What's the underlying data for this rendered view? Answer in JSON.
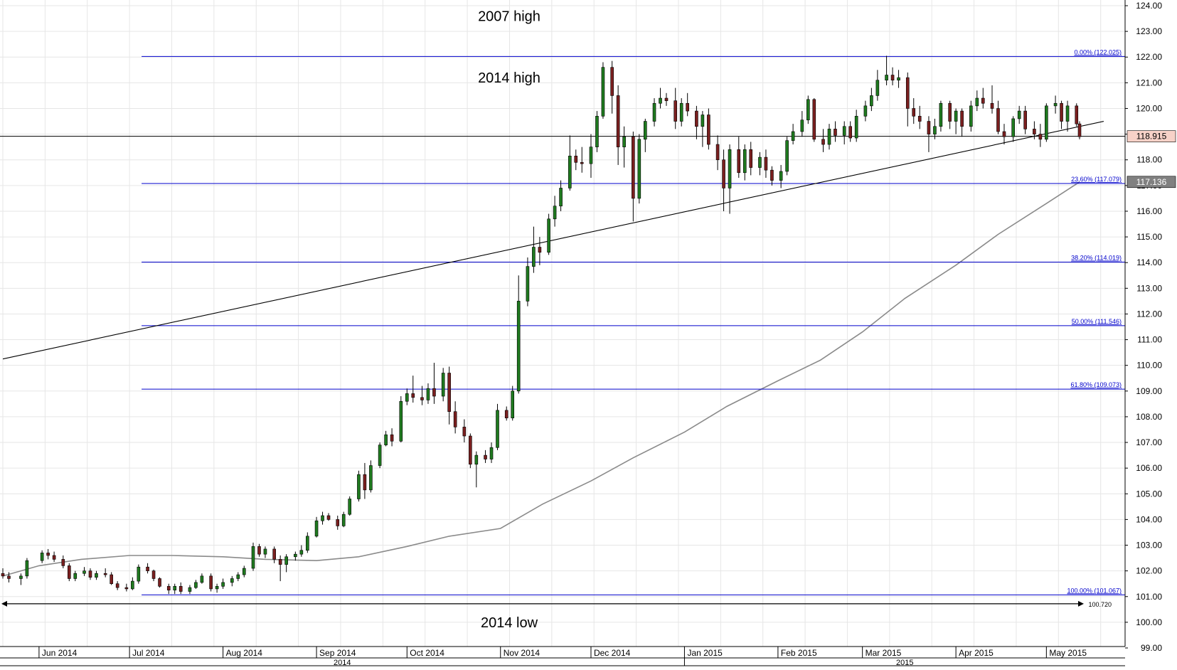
{
  "chart_data": {
    "type": "candlestick",
    "symbol": "",
    "ylim": [
      99.0,
      124.0
    ],
    "ytick_labels": [
      "99.00",
      "100.00",
      "101.00",
      "102.00",
      "103.00",
      "104.00",
      "105.00",
      "106.00",
      "107.00",
      "108.00",
      "109.00",
      "110.00",
      "111.00",
      "112.00",
      "113.00",
      "114.00",
      "115.00",
      "116.00",
      "117.00",
      "118.00",
      "119.00",
      "120.00",
      "121.00",
      "122.00",
      "123.00",
      "124.00"
    ],
    "xtick_labels": [
      "Jun 2014",
      "Jul 2014",
      "Aug 2014",
      "Sep 2014",
      "Oct 2014",
      "Nov 2014",
      "Dec 2014",
      "Jan 2015",
      "Feb 2015",
      "Mar 2015",
      "Apr 2015",
      "May 2015"
    ],
    "year_labels": [
      "2014",
      "2015"
    ],
    "date_range": [
      "2014-05-20",
      "2015-05-12"
    ],
    "annotations": [
      {
        "text": "2007 high",
        "price": 123.6
      },
      {
        "text": "2014 high",
        "price": 121.2
      },
      {
        "text": "2014 low",
        "price": 100.0
      }
    ],
    "fib_levels": [
      {
        "label": "0.00% (122.025)",
        "price": 122.025
      },
      {
        "label": "23.60% (117.079)",
        "price": 117.079
      },
      {
        "label": "38.20% (114.019)",
        "price": 114.019
      },
      {
        "label": "50.00% (111.546)",
        "price": 111.546
      },
      {
        "label": "61.80% (109.073)",
        "price": 109.073
      },
      {
        "label": "100.00% (101.067)",
        "price": 101.067
      }
    ],
    "horizontal_lines": [
      {
        "price": 118.915,
        "label": "118.915",
        "color": "#000000",
        "badge_bg": "#f7d2c8"
      },
      {
        "price": 100.72,
        "label": "100.720",
        "color": "#000000"
      }
    ],
    "trendline": {
      "start": [
        "2014-05-20",
        110.25
      ],
      "end": [
        "2015-05-20",
        119.5
      ]
    },
    "moving_average": {
      "current_value": "117.136",
      "badge_bg": "#808080",
      "x": [
        "2014-05-20",
        "2014-06-01",
        "2014-06-15",
        "2014-07-01",
        "2014-07-15",
        "2014-08-01",
        "2014-08-15",
        "2014-09-01",
        "2014-09-15",
        "2014-10-01",
        "2014-10-15",
        "2014-11-01",
        "2014-11-15",
        "2014-12-01",
        "2014-12-15",
        "2015-01-01",
        "2015-01-15",
        "2015-02-01",
        "2015-02-15",
        "2015-03-01",
        "2015-03-15",
        "2015-04-01",
        "2015-04-15",
        "2015-05-01",
        "2015-05-12"
      ],
      "y": [
        101.8,
        102.2,
        102.45,
        102.6,
        102.6,
        102.55,
        102.45,
        102.4,
        102.55,
        102.95,
        103.35,
        103.65,
        104.6,
        105.5,
        106.4,
        107.4,
        108.4,
        109.4,
        110.2,
        111.3,
        112.6,
        113.9,
        115.1,
        116.3,
        117.14
      ]
    },
    "candles": [
      [
        "2014-05-20",
        101.9,
        102.1,
        101.7,
        101.8
      ],
      [
        "2014-05-22",
        101.8,
        101.95,
        101.55,
        101.7
      ],
      [
        "2014-05-26",
        101.7,
        101.9,
        101.45,
        101.8
      ],
      [
        "2014-05-28",
        101.8,
        102.5,
        101.7,
        102.4
      ],
      [
        "2014-06-02",
        102.4,
        102.8,
        102.3,
        102.7
      ],
      [
        "2014-06-04",
        102.7,
        102.85,
        102.45,
        102.6
      ],
      [
        "2014-06-06",
        102.6,
        102.75,
        102.35,
        102.45
      ],
      [
        "2014-06-09",
        102.45,
        102.6,
        102.1,
        102.2
      ],
      [
        "2014-06-11",
        102.2,
        102.3,
        101.6,
        101.7
      ],
      [
        "2014-06-13",
        101.7,
        102.0,
        101.6,
        101.9
      ],
      [
        "2014-06-16",
        101.9,
        102.15,
        101.8,
        102.0
      ],
      [
        "2014-06-18",
        102.0,
        102.1,
        101.65,
        101.75
      ],
      [
        "2014-06-20",
        101.75,
        102.0,
        101.65,
        101.9
      ],
      [
        "2014-06-23",
        101.9,
        102.1,
        101.75,
        101.85
      ],
      [
        "2014-06-25",
        101.85,
        101.95,
        101.45,
        101.5
      ],
      [
        "2014-06-27",
        101.5,
        101.6,
        101.25,
        101.35
      ],
      [
        "2014-06-30",
        101.35,
        101.5,
        101.2,
        101.3
      ],
      [
        "2014-07-02",
        101.3,
        101.75,
        101.25,
        101.6
      ],
      [
        "2014-07-04",
        101.6,
        102.25,
        101.5,
        102.15
      ],
      [
        "2014-07-07",
        102.15,
        102.3,
        101.9,
        102.0
      ],
      [
        "2014-07-09",
        102.0,
        102.05,
        101.6,
        101.7
      ],
      [
        "2014-07-11",
        101.7,
        101.75,
        101.35,
        101.4
      ],
      [
        "2014-07-14",
        101.4,
        101.5,
        101.1,
        101.25
      ],
      [
        "2014-07-16",
        101.25,
        101.5,
        101.1,
        101.4
      ],
      [
        "2014-07-18",
        101.4,
        101.55,
        101.1,
        101.2
      ],
      [
        "2014-07-21",
        101.2,
        101.45,
        101.1,
        101.35
      ],
      [
        "2014-07-23",
        101.35,
        101.65,
        101.3,
        101.55
      ],
      [
        "2014-07-25",
        101.55,
        101.9,
        101.5,
        101.8
      ],
      [
        "2014-07-28",
        101.8,
        101.9,
        101.2,
        101.3
      ],
      [
        "2014-07-30",
        101.3,
        101.5,
        101.15,
        101.4
      ],
      [
        "2014-08-01",
        101.4,
        101.7,
        101.3,
        101.55
      ],
      [
        "2014-08-04",
        101.55,
        101.8,
        101.4,
        101.7
      ],
      [
        "2014-08-06",
        101.7,
        101.95,
        101.6,
        101.85
      ],
      [
        "2014-08-08",
        101.85,
        102.2,
        101.75,
        102.1
      ],
      [
        "2014-08-11",
        102.1,
        103.1,
        102.0,
        102.95
      ],
      [
        "2014-08-13",
        102.95,
        103.05,
        102.55,
        102.65
      ],
      [
        "2014-08-15",
        102.65,
        102.95,
        102.5,
        102.85
      ],
      [
        "2014-08-18",
        102.85,
        102.95,
        102.3,
        102.45
      ],
      [
        "2014-08-20",
        102.45,
        102.6,
        101.6,
        102.25
      ],
      [
        "2014-08-22",
        102.25,
        102.65,
        101.95,
        102.55
      ],
      [
        "2014-08-25",
        102.55,
        102.75,
        102.4,
        102.65
      ],
      [
        "2014-08-27",
        102.65,
        103.0,
        102.55,
        102.8
      ],
      [
        "2014-08-29",
        102.8,
        103.5,
        102.7,
        103.35
      ],
      [
        "2014-09-01",
        103.35,
        104.1,
        103.3,
        103.95
      ],
      [
        "2014-09-03",
        103.95,
        104.3,
        103.8,
        104.15
      ],
      [
        "2014-09-05",
        104.15,
        104.25,
        103.95,
        104.0
      ],
      [
        "2014-09-08",
        104.0,
        104.15,
        103.6,
        103.75
      ],
      [
        "2014-09-10",
        103.75,
        104.3,
        103.7,
        104.2
      ],
      [
        "2014-09-12",
        104.2,
        104.9,
        104.15,
        104.8
      ],
      [
        "2014-09-15",
        104.8,
        105.9,
        104.7,
        105.75
      ],
      [
        "2014-09-17",
        105.75,
        106.2,
        104.8,
        105.15
      ],
      [
        "2014-09-19",
        105.15,
        106.3,
        105.05,
        106.1
      ],
      [
        "2014-09-22",
        106.1,
        107.0,
        106.0,
        106.9
      ],
      [
        "2014-09-24",
        106.9,
        107.45,
        106.85,
        107.3
      ],
      [
        "2014-09-26",
        107.3,
        107.55,
        106.85,
        107.05
      ],
      [
        "2014-09-29",
        107.05,
        108.8,
        107.0,
        108.6
      ],
      [
        "2014-10-01",
        108.6,
        109.1,
        108.45,
        108.9
      ],
      [
        "2014-10-03",
        108.9,
        109.6,
        108.55,
        108.75
      ],
      [
        "2014-10-06",
        108.75,
        109.2,
        108.45,
        108.65
      ],
      [
        "2014-10-08",
        108.65,
        109.3,
        108.5,
        109.1
      ],
      [
        "2014-10-10",
        109.1,
        110.1,
        108.5,
        108.8
      ],
      [
        "2014-10-13",
        108.8,
        109.9,
        108.6,
        109.7
      ],
      [
        "2014-10-15",
        109.7,
        109.95,
        107.7,
        108.2
      ],
      [
        "2014-10-17",
        108.2,
        108.6,
        107.35,
        107.6
      ],
      [
        "2014-10-20",
        107.6,
        107.9,
        107.0,
        107.25
      ],
      [
        "2014-10-22",
        107.25,
        107.35,
        106.0,
        106.15
      ],
      [
        "2014-10-24",
        106.15,
        106.65,
        105.25,
        106.5
      ],
      [
        "2014-10-27",
        106.5,
        106.7,
        106.2,
        106.35
      ],
      [
        "2014-10-29",
        106.35,
        107.0,
        106.2,
        106.8
      ],
      [
        "2014-10-31",
        106.8,
        108.5,
        106.7,
        108.25
      ],
      [
        "2014-11-03",
        108.25,
        108.4,
        107.85,
        107.95
      ],
      [
        "2014-11-05",
        107.95,
        109.2,
        107.85,
        109.0
      ],
      [
        "2014-11-07",
        109.0,
        113.5,
        108.9,
        112.5
      ],
      [
        "2014-11-10",
        112.5,
        114.2,
        112.3,
        113.85
      ],
      [
        "2014-11-12",
        113.85,
        115.4,
        113.6,
        114.6
      ],
      [
        "2014-11-14",
        114.6,
        115.0,
        113.9,
        114.4
      ],
      [
        "2014-11-17",
        114.4,
        115.9,
        114.3,
        115.7
      ],
      [
        "2014-11-19",
        115.7,
        116.6,
        115.4,
        116.2
      ],
      [
        "2014-11-21",
        116.2,
        117.2,
        116.0,
        116.9
      ],
      [
        "2014-11-24",
        116.9,
        118.95,
        116.8,
        118.15
      ],
      [
        "2014-11-26",
        118.15,
        118.4,
        117.6,
        117.9
      ],
      [
        "2014-11-28",
        117.9,
        118.5,
        117.5,
        117.85
      ],
      [
        "2014-12-01",
        117.85,
        119.0,
        117.3,
        118.5
      ],
      [
        "2014-12-03",
        118.5,
        119.9,
        118.3,
        119.7
      ],
      [
        "2014-12-05",
        119.7,
        121.8,
        119.6,
        121.6
      ],
      [
        "2014-12-08",
        121.6,
        121.85,
        119.8,
        120.5
      ],
      [
        "2014-12-10",
        120.5,
        120.9,
        117.8,
        118.5
      ],
      [
        "2014-12-12",
        118.5,
        119.3,
        117.7,
        118.9
      ],
      [
        "2014-12-15",
        118.9,
        119.1,
        115.6,
        116.5
      ],
      [
        "2014-12-17",
        116.5,
        119.0,
        116.3,
        118.8
      ],
      [
        "2014-12-19",
        118.8,
        119.6,
        118.3,
        119.5
      ],
      [
        "2014-12-22",
        119.5,
        120.4,
        119.3,
        120.2
      ],
      [
        "2014-12-24",
        120.2,
        120.8,
        120.0,
        120.4
      ],
      [
        "2014-12-26",
        120.4,
        120.6,
        120.1,
        120.3
      ],
      [
        "2014-12-29",
        120.3,
        120.8,
        119.2,
        119.5
      ],
      [
        "2014-12-31",
        119.5,
        120.4,
        119.3,
        120.2
      ],
      [
        "2015-01-02",
        120.2,
        120.6,
        119.7,
        119.9
      ],
      [
        "2015-01-05",
        119.9,
        120.1,
        118.8,
        119.3
      ],
      [
        "2015-01-07",
        119.3,
        119.9,
        118.5,
        119.75
      ],
      [
        "2015-01-09",
        119.75,
        120.0,
        118.4,
        118.6
      ],
      [
        "2015-01-12",
        118.6,
        118.95,
        117.6,
        118.0
      ],
      [
        "2015-01-14",
        118.0,
        118.4,
        116.0,
        116.9
      ],
      [
        "2015-01-16",
        116.9,
        118.6,
        115.9,
        118.4
      ],
      [
        "2015-01-19",
        118.4,
        118.9,
        117.3,
        117.5
      ],
      [
        "2015-01-21",
        117.5,
        118.6,
        117.2,
        118.4
      ],
      [
        "2015-01-23",
        118.4,
        118.7,
        117.4,
        117.7
      ],
      [
        "2015-01-26",
        117.7,
        118.3,
        117.4,
        118.1
      ],
      [
        "2015-01-28",
        118.1,
        118.4,
        117.3,
        117.6
      ],
      [
        "2015-01-30",
        117.6,
        117.75,
        117.0,
        117.2
      ],
      [
        "2015-02-02",
        117.2,
        117.8,
        116.9,
        117.55
      ],
      [
        "2015-02-04",
        117.55,
        118.9,
        117.4,
        118.75
      ],
      [
        "2015-02-06",
        118.75,
        119.4,
        118.6,
        119.1
      ],
      [
        "2015-02-09",
        119.1,
        119.9,
        118.9,
        119.55
      ],
      [
        "2015-02-11",
        119.55,
        120.5,
        119.4,
        120.35
      ],
      [
        "2015-02-13",
        120.35,
        120.4,
        118.7,
        118.8
      ],
      [
        "2015-02-16",
        118.8,
        119.2,
        118.3,
        118.6
      ],
      [
        "2015-02-18",
        118.6,
        119.4,
        118.4,
        119.2
      ],
      [
        "2015-02-20",
        119.2,
        119.5,
        118.7,
        118.95
      ],
      [
        "2015-02-23",
        118.95,
        119.5,
        118.6,
        119.3
      ],
      [
        "2015-02-25",
        119.3,
        119.5,
        118.7,
        118.85
      ],
      [
        "2015-02-27",
        118.85,
        119.95,
        118.7,
        119.7
      ],
      [
        "2015-03-02",
        119.7,
        120.3,
        119.5,
        120.1
      ],
      [
        "2015-03-04",
        120.1,
        120.8,
        119.9,
        120.5
      ],
      [
        "2015-03-06",
        120.5,
        121.5,
        120.3,
        121.1
      ],
      [
        "2015-03-09",
        121.1,
        122.05,
        120.9,
        121.3
      ],
      [
        "2015-03-11",
        121.3,
        121.6,
        120.9,
        121.1
      ],
      [
        "2015-03-13",
        121.1,
        121.5,
        120.8,
        121.2
      ],
      [
        "2015-03-16",
        121.2,
        121.4,
        119.3,
        120.0
      ],
      [
        "2015-03-18",
        120.0,
        120.4,
        119.4,
        119.7
      ],
      [
        "2015-03-20",
        119.7,
        120.1,
        119.2,
        119.5
      ],
      [
        "2015-03-23",
        119.5,
        119.7,
        118.3,
        119.0
      ],
      [
        "2015-03-25",
        119.0,
        119.6,
        118.8,
        119.3
      ],
      [
        "2015-03-27",
        119.3,
        120.3,
        119.1,
        120.2
      ],
      [
        "2015-03-30",
        120.2,
        120.3,
        119.2,
        119.5
      ],
      [
        "2015-04-01",
        119.5,
        120.0,
        119.0,
        119.9
      ],
      [
        "2015-04-03",
        119.9,
        120.0,
        118.9,
        119.3
      ],
      [
        "2015-04-06",
        119.3,
        120.3,
        119.1,
        120.1
      ],
      [
        "2015-04-08",
        120.1,
        120.7,
        119.9,
        120.4
      ],
      [
        "2015-04-10",
        120.4,
        120.8,
        120.0,
        120.2
      ],
      [
        "2015-04-13",
        120.2,
        120.9,
        119.8,
        120.0
      ],
      [
        "2015-04-15",
        120.0,
        120.3,
        119.0,
        119.1
      ],
      [
        "2015-04-17",
        119.1,
        119.4,
        118.6,
        118.9
      ],
      [
        "2015-04-20",
        118.9,
        119.7,
        118.7,
        119.6
      ],
      [
        "2015-04-22",
        119.6,
        120.1,
        119.4,
        119.9
      ],
      [
        "2015-04-24",
        119.9,
        120.1,
        119.0,
        119.2
      ],
      [
        "2015-04-27",
        119.2,
        119.5,
        118.8,
        119.0
      ],
      [
        "2015-04-29",
        119.0,
        119.4,
        118.5,
        118.8
      ],
      [
        "2015-05-01",
        118.8,
        120.2,
        118.7,
        120.1
      ],
      [
        "2015-05-04",
        120.1,
        120.5,
        119.8,
        120.2
      ],
      [
        "2015-05-06",
        120.2,
        120.3,
        119.2,
        119.5
      ],
      [
        "2015-05-08",
        119.5,
        120.3,
        119.1,
        120.1
      ],
      [
        "2015-05-11",
        120.1,
        120.2,
        119.3,
        119.4
      ],
      [
        "2015-05-12",
        119.4,
        119.5,
        118.8,
        118.9
      ]
    ],
    "colors": {
      "up": "#1f7a1f",
      "down": "#7a1f1f",
      "fib": "#0000cc",
      "grid": "#e6e6e6",
      "ma": "#8a8a8a",
      "trendline": "#000000"
    }
  }
}
